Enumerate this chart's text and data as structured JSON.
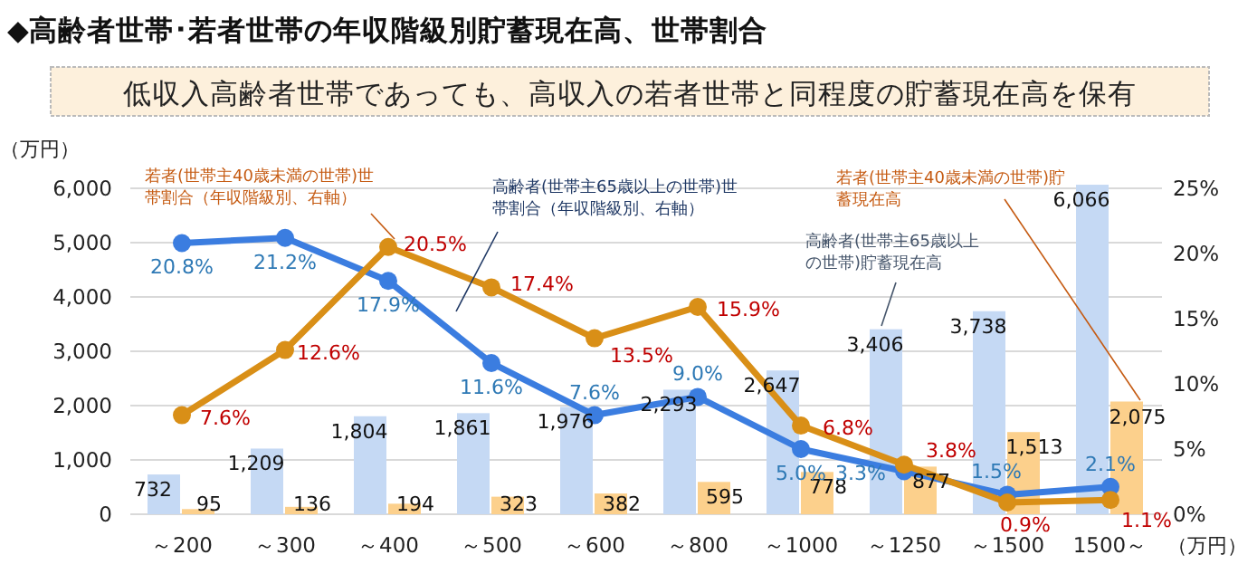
{
  "chart_data": {
    "type": "bar",
    "title": "◆高齢者世帯･若者世帯の年収階級別貯蓄現在高、世帯割合",
    "subtitle": "低収入高齢者世帯であっても、高収入の若者世帯と同程度の貯蓄現在高を保有",
    "ylabel": "（万円）",
    "xlabel": "（万円）",
    "categories": [
      "～200",
      "～300",
      "～400",
      "～500",
      "～600",
      "～800",
      "～1000",
      "～1250",
      "～1500",
      "1500～"
    ],
    "series": [
      {
        "name": "高齢者(世帯主65歳以上の世帯)貯蓄現在高",
        "color": "#c5d9f4",
        "values": [
          732,
          1209,
          1804,
          1861,
          1976,
          2293,
          2647,
          3406,
          3738,
          6066
        ],
        "value_labels": [
          "732",
          "1,209",
          "1,804",
          "1,861",
          "1,976",
          "2,293",
          "2,647",
          "3,406",
          "3,738",
          "6,066"
        ]
      },
      {
        "name": "若者(世帯主40歳未満の世帯)貯蓄現在高",
        "color": "#fcd08c",
        "values": [
          95,
          136,
          194,
          323,
          382,
          595,
          778,
          877,
          1513,
          2075
        ],
        "value_labels": [
          "95",
          "136",
          "194",
          "323",
          "382",
          "595",
          "778",
          "877",
          "1,513",
          "2,075"
        ]
      },
      {
        "name": "高齢者(世帯主65歳以上の世帯)世帯割合（年収階級別、右軸）",
        "type": "line",
        "axis": "y2",
        "color": "#3b7de0",
        "values": [
          20.8,
          21.2,
          17.9,
          11.6,
          7.6,
          9.0,
          5.0,
          3.3,
          1.5,
          2.1
        ],
        "value_labels": [
          "20.8%",
          "21.2%",
          "17.9%",
          "11.6%",
          "7.6%",
          "9.0%",
          "5.0%",
          "3.3%",
          "1.5%",
          "2.1%"
        ]
      },
      {
        "name": "若者(世帯主40歳未満の世帯)世帯割合（年収階級別、右軸）",
        "type": "line",
        "axis": "y2",
        "color": "#d98f17",
        "values": [
          7.6,
          12.6,
          20.5,
          17.4,
          13.5,
          15.9,
          6.8,
          3.8,
          0.9,
          1.1
        ],
        "value_labels": [
          "7.6%",
          "12.6%",
          "20.5%",
          "17.4%",
          "13.5%",
          "15.9%",
          "6.8%",
          "3.8%",
          "0.9%",
          "1.1%"
        ]
      }
    ],
    "ylim": [
      0,
      6100
    ],
    "yticks": [
      {
        "value": 0,
        "label": "0"
      },
      {
        "value": 1000,
        "label": "1,000"
      },
      {
        "value": 2000,
        "label": "2,000"
      },
      {
        "value": 3000,
        "label": "3,000"
      },
      {
        "value": 4000,
        "label": "4,000"
      },
      {
        "value": 5000,
        "label": "5,000"
      },
      {
        "value": 6000,
        "label": "6,000"
      }
    ],
    "y2lim": [
      0,
      25
    ],
    "y2ticks": [
      {
        "value": 0,
        "label": "0%"
      },
      {
        "value": 5,
        "label": "5%"
      },
      {
        "value": 10,
        "label": "10%"
      },
      {
        "value": 15,
        "label": "15%"
      },
      {
        "value": 20,
        "label": "20%"
      },
      {
        "value": 25,
        "label": "25%"
      }
    ],
    "grid": "y",
    "marker": "circle"
  }
}
